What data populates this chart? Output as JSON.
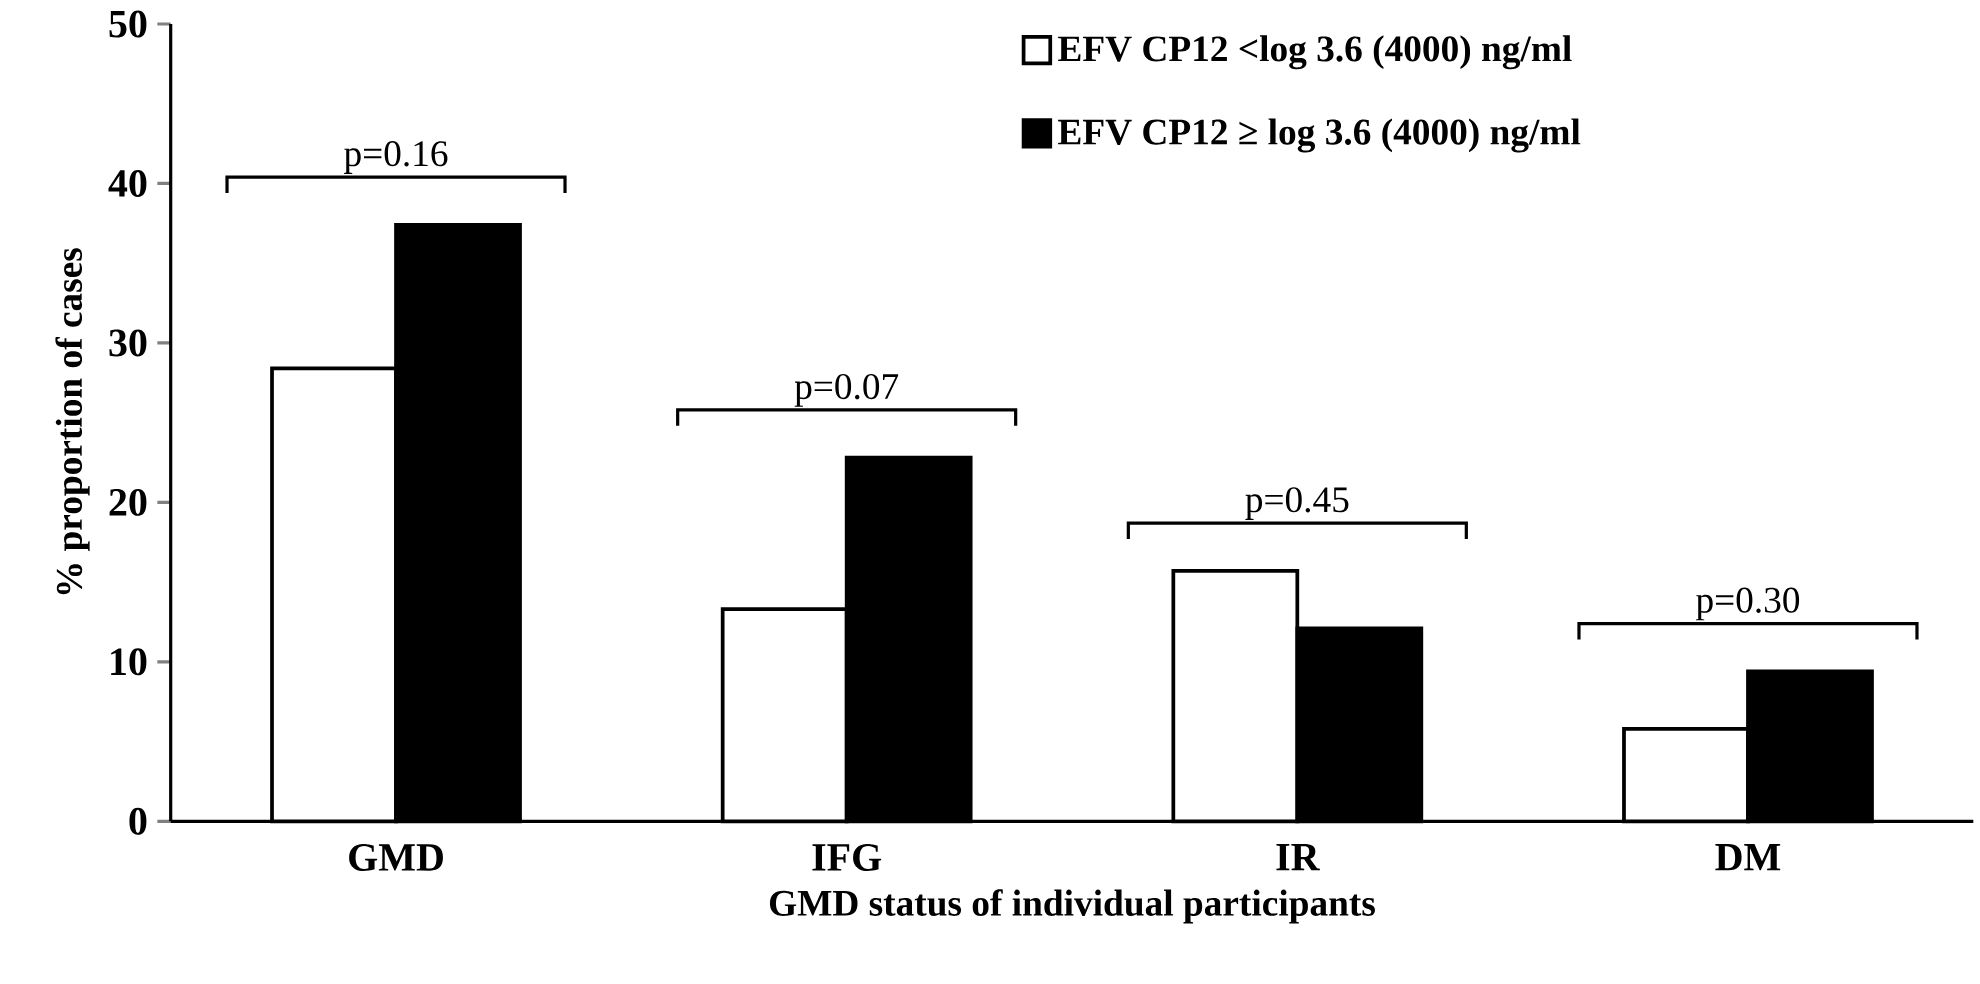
{
  "chart_data": {
    "type": "bar",
    "xlabel": "GMD status of individual participants",
    "ylabel": "% proportion of cases",
    "categories": [
      "GMD",
      "IFG",
      "IR",
      "DM"
    ],
    "series": [
      {
        "name": "EFV CP12 <log 3.6 (4000) ng/ml",
        "color": "#ffffff",
        "values": [
          28.4,
          13.3,
          15.7,
          5.8
        ]
      },
      {
        "name": "EFV CP12 ≥ log 3.6 (4000) ng/ml",
        "color": "#000000",
        "values": [
          37.4,
          22.8,
          12.1,
          9.4
        ]
      }
    ],
    "ylim": [
      0,
      50
    ],
    "yticks": [
      0,
      10,
      20,
      30,
      40,
      50
    ],
    "grid": false,
    "legend": "top right",
    "annotations": [
      "p=0.16",
      "p=0.07",
      "p=0.45",
      "p=0.30"
    ]
  }
}
